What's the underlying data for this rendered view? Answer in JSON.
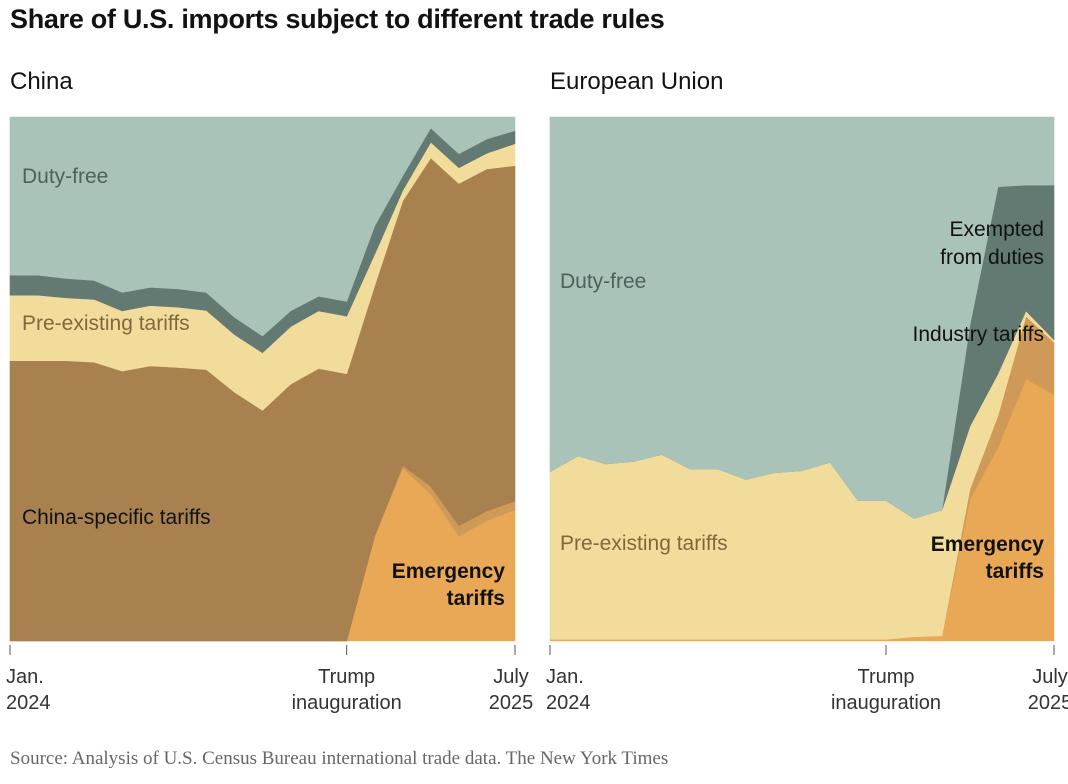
{
  "title": "Share of U.S. imports subject to different trade rules",
  "source": "Source: Analysis of U.S. Census Bureau international trade data.  The New York Times",
  "colors": {
    "duty_free": "#a9c3b9",
    "exempted": "#627a72",
    "pre_existing": "#f2dc9b",
    "china_specific": "#a8814f",
    "industry": "#cf9a58",
    "emergency": "#e9a855"
  },
  "x_labels": {
    "start": [
      "Jan.",
      "2024"
    ],
    "inauguration": [
      "Trump",
      "inauguration"
    ],
    "end": [
      "July",
      "2025"
    ]
  },
  "chart_data": [
    {
      "type": "area",
      "stacked": true,
      "title": "China",
      "x": [
        "2024-01",
        "2024-02",
        "2024-03",
        "2024-04",
        "2024-05",
        "2024-06",
        "2024-07",
        "2024-08",
        "2024-09",
        "2024-10",
        "2024-11",
        "2024-12",
        "2025-01",
        "2025-02",
        "2025-03",
        "2025-04",
        "2025-05",
        "2025-06",
        "2025-07"
      ],
      "inauguration_index": 12,
      "ylim": [
        0,
        100
      ],
      "series": [
        {
          "key": "emergency",
          "name": "Emergency tariffs",
          "color_key": "emergency",
          "bold": true,
          "values": [
            0,
            0,
            0,
            0,
            0,
            0,
            0,
            0,
            0,
            0,
            0,
            0,
            0,
            20,
            33,
            28,
            20,
            23,
            25
          ]
        },
        {
          "key": "industry",
          "name": "",
          "color_key": "industry",
          "values": [
            0,
            0,
            0,
            0,
            0,
            0,
            0,
            0,
            0,
            0,
            0,
            0,
            0,
            0,
            0.5,
            1.5,
            2,
            1.8,
            1.7
          ]
        },
        {
          "key": "china_specific",
          "name": "China-specific tariffs",
          "color_key": "china_specific",
          "values": [
            53.5,
            53.5,
            53.5,
            53.2,
            51.5,
            52.5,
            52.2,
            51.8,
            47.5,
            44,
            49,
            52,
            51,
            47.8,
            50.5,
            62.7,
            65.3,
            65.3,
            64
          ]
        },
        {
          "key": "pre_existing",
          "name": "Pre-existing tariffs",
          "color_key": "pre_existing",
          "values": [
            12.5,
            12.5,
            12,
            12,
            11.5,
            11.5,
            11.5,
            11.3,
            11,
            11,
            11,
            11,
            11,
            6,
            2,
            3,
            3,
            3,
            4.2
          ]
        },
        {
          "key": "exempted",
          "name": "",
          "color_key": "exempted",
          "values": [
            3.8,
            3.8,
            3.7,
            3.6,
            3.5,
            3.5,
            3.5,
            3.4,
            3.3,
            3.2,
            3.0,
            2.8,
            2.8,
            5.4,
            2.8,
            2.7,
            2.7,
            2.7,
            2.5
          ]
        },
        {
          "key": "duty_free",
          "name": "Duty-free",
          "color_key": "duty_free",
          "values": [
            30.2,
            30.2,
            30.8,
            31.2,
            33.5,
            32.5,
            32.8,
            33.5,
            38.2,
            41.8,
            37,
            34.2,
            35.2,
            20.8,
            11.2,
            2.1,
            7,
            4.2,
            2.6
          ]
        }
      ]
    },
    {
      "type": "area",
      "stacked": true,
      "title": "European Union",
      "x": [
        "2024-01",
        "2024-02",
        "2024-03",
        "2024-04",
        "2024-05",
        "2024-06",
        "2024-07",
        "2024-08",
        "2024-09",
        "2024-10",
        "2024-11",
        "2024-12",
        "2025-01",
        "2025-02",
        "2025-03",
        "2025-04",
        "2025-05",
        "2025-06",
        "2025-07"
      ],
      "inauguration_index": 12,
      "ylim": [
        0,
        100
      ],
      "series": [
        {
          "key": "emergency",
          "name": "Emergency tariffs",
          "color_key": "emergency",
          "bold": true,
          "values": [
            0.3,
            0.3,
            0.3,
            0.3,
            0.3,
            0.3,
            0.3,
            0.3,
            0.3,
            0.3,
            0.3,
            0.3,
            0.3,
            0.8,
            1,
            27,
            37,
            50,
            47
          ]
        },
        {
          "key": "industry",
          "name": "Industry tariffs",
          "color_key": "industry",
          "values": [
            0,
            0,
            0,
            0,
            0,
            0,
            0,
            0,
            0,
            0,
            0,
            0,
            0,
            0,
            0,
            2,
            6,
            12,
            10
          ]
        },
        {
          "key": "pre_existing",
          "name": "Pre-existing tariffs",
          "color_key": "pre_existing",
          "values": [
            32,
            35,
            33.5,
            34,
            35.3,
            32.5,
            32.5,
            30.5,
            31.8,
            32.2,
            33.8,
            26.5,
            26.5,
            22.6,
            24,
            12,
            8,
            1,
            0.5
          ]
        },
        {
          "key": "exempted",
          "name": "Exempted from duties",
          "color_key": "exempted",
          "values": [
            0,
            0,
            0,
            0,
            0,
            0,
            0,
            0,
            0,
            0,
            0,
            0,
            0,
            0,
            0,
            19.3,
            35.7,
            24,
            29.5
          ]
        },
        {
          "key": "duty_free",
          "name": "Duty-free",
          "color_key": "duty_free",
          "values": [
            67.7,
            64.7,
            66.2,
            65.7,
            64.4,
            67.2,
            67.2,
            69.2,
            67.9,
            67.5,
            65.9,
            73.2,
            73.2,
            76.6,
            75,
            39.7,
            13.3,
            13,
            13
          ]
        }
      ]
    }
  ]
}
